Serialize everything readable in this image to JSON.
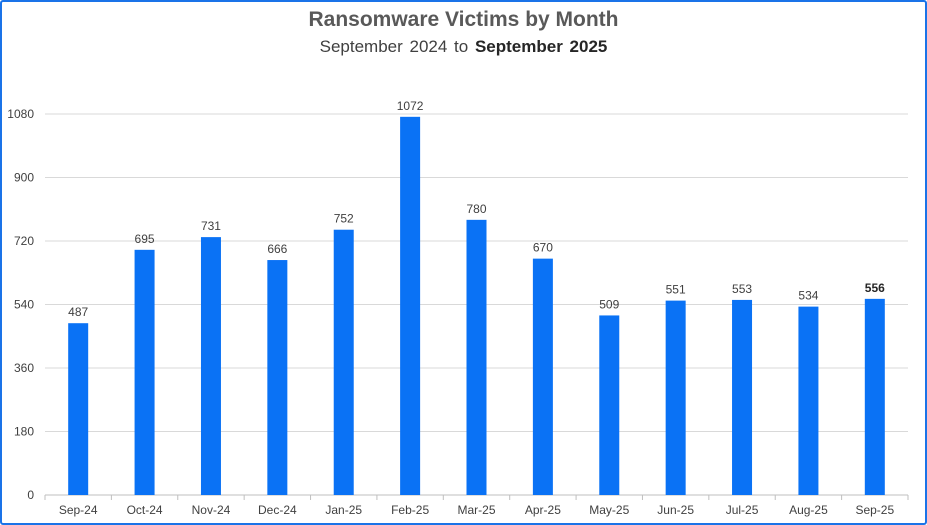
{
  "chart_data": {
    "type": "bar",
    "title": "Ransomware Victims by Month",
    "subtitle_prefix": "September 2024 to",
    "subtitle_bold": "September 2025",
    "categories": [
      "Sep-24",
      "Oct-24",
      "Nov-24",
      "Dec-24",
      "Jan-25",
      "Feb-25",
      "Mar-25",
      "Apr-25",
      "May-25",
      "Jun-25",
      "Jul-25",
      "Aug-25",
      "Sep-25"
    ],
    "values": [
      487,
      695,
      731,
      666,
      752,
      1072,
      780,
      670,
      509,
      551,
      553,
      534,
      556
    ],
    "data_labels": [
      "487",
      "695",
      "731",
      "666",
      "752",
      "1072",
      "780",
      "670",
      "509",
      "551",
      "553",
      "534",
      "556"
    ],
    "highlight_label_index": 12,
    "ylim": [
      0,
      1080
    ],
    "yticks": [
      0,
      180,
      360,
      540,
      720,
      900,
      1080
    ],
    "grid": true,
    "bar_color": "#0a72f5",
    "grid_color": "#d9d9d9",
    "frame_color": "#1a73e8"
  }
}
